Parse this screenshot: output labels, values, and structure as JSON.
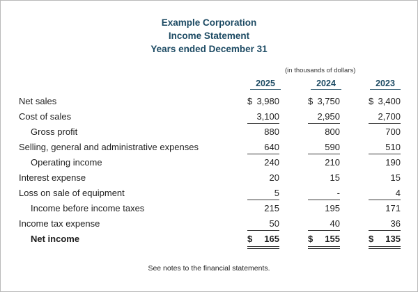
{
  "header": {
    "company": "Example Corporation",
    "statement": "Income Statement",
    "period": "Years ended December 31"
  },
  "units_note": "(in thousands of dollars)",
  "years": [
    "2025",
    "2024",
    "2023"
  ],
  "rows": {
    "net_sales": {
      "label": "Net sales",
      "currency": "$",
      "values": [
        "3,980",
        "3,750",
        "3,400"
      ]
    },
    "cost_of_sales": {
      "label": "Cost of sales",
      "values": [
        "3,100",
        "2,950",
        "2,700"
      ]
    },
    "gross_profit": {
      "label": "Gross profit",
      "values": [
        "880",
        "800",
        "700"
      ]
    },
    "sga": {
      "label": "Selling, general and administrative expenses",
      "values": [
        "640",
        "590",
        "510"
      ]
    },
    "operating_income": {
      "label": "Operating income",
      "values": [
        "240",
        "210",
        "190"
      ]
    },
    "interest_expense": {
      "label": "Interest expense",
      "values": [
        "20",
        "15",
        "15"
      ]
    },
    "loss_on_sale": {
      "label": "Loss on sale of equipment",
      "values": [
        "5",
        "-",
        "4"
      ]
    },
    "income_before_tax": {
      "label": "Income before income taxes",
      "values": [
        "215",
        "195",
        "171"
      ]
    },
    "income_tax": {
      "label": "Income tax expense",
      "values": [
        "50",
        "40",
        "36"
      ]
    },
    "net_income": {
      "label": "Net income",
      "currency": "$",
      "values": [
        "165",
        "155",
        "135"
      ]
    }
  },
  "footnote": "See notes to the financial statements."
}
